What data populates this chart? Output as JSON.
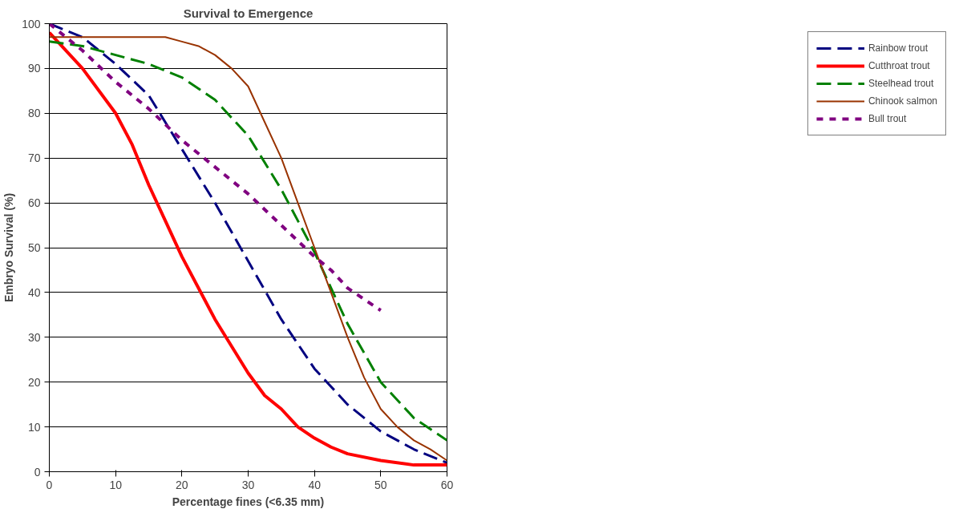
{
  "chart_data": {
    "type": "line",
    "title": "Survival to Emergence",
    "xlabel": "Percentage fines (<6.35 mm)",
    "ylabel": "Embryo Survival (%)",
    "xlim": [
      0,
      60
    ],
    "xticks": [
      0,
      10,
      20,
      30,
      40,
      50,
      60
    ],
    "ylim": [
      0,
      100
    ],
    "yticks": [
      0,
      10,
      20,
      30,
      40,
      50,
      60,
      70,
      80,
      90,
      100
    ],
    "grid": "y",
    "legend": "right",
    "marker": "none",
    "series": [
      {
        "name": "Rainbow trout",
        "color": "#000080",
        "line_style": "dashed",
        "x": [
          0,
          5,
          10,
          15,
          20,
          25,
          30,
          35,
          40,
          45,
          50,
          55,
          60
        ],
        "values": [
          100,
          97,
          91,
          84,
          72,
          60,
          47,
          34,
          23,
          15,
          9,
          5,
          2
        ]
      },
      {
        "name": "Cutthroat trout",
        "color": "#ff0000",
        "line_style": "solid",
        "x": [
          0,
          5,
          10,
          12.5,
          15,
          17.5,
          20,
          25,
          30,
          32.5,
          35,
          37.5,
          40,
          42.5,
          45,
          50,
          55,
          60
        ],
        "values": [
          98,
          90,
          80,
          73,
          64,
          56,
          48,
          34,
          22,
          17,
          14,
          10,
          7.5,
          5.5,
          4,
          2.5,
          1.5,
          1.5
        ]
      },
      {
        "name": "Steelhead trout",
        "color": "#008000",
        "line_style": "dashed",
        "x": [
          0,
          5,
          10,
          15,
          20,
          25,
          30,
          35,
          40,
          45,
          50,
          55,
          60
        ],
        "values": [
          96,
          95,
          93,
          91,
          88,
          83,
          75,
          63,
          49,
          33,
          20,
          12,
          7
        ]
      },
      {
        "name": "Chinook salmon",
        "color": "#993300",
        "line_style": "solid",
        "x": [
          0,
          5,
          10,
          17.5,
          20,
          22.5,
          25,
          27.5,
          30,
          32.5,
          35,
          37.5,
          40,
          42.5,
          45,
          47.5,
          50,
          52.5,
          55,
          57.5,
          60
        ],
        "values": [
          97,
          97,
          97,
          97,
          96,
          95,
          93,
          90,
          86,
          78,
          70,
          60,
          50,
          40,
          30,
          21,
          14,
          10,
          7,
          5,
          2.5
        ]
      },
      {
        "name": "Bull trout",
        "color": "#800080",
        "line_style": "dotted",
        "x": [
          0,
          5,
          10,
          15,
          20,
          25,
          30,
          35,
          40,
          42.5,
          45,
          50
        ],
        "values": [
          100,
          94,
          87,
          81,
          74,
          68,
          62,
          55,
          48,
          45,
          41,
          36
        ]
      }
    ]
  }
}
